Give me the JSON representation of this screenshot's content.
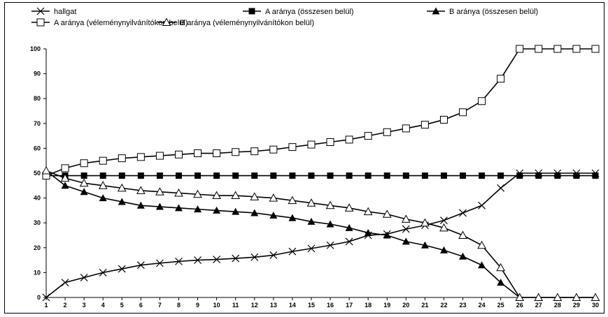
{
  "chart_data": {
    "type": "line",
    "title": "",
    "xlabel": "",
    "ylabel": "",
    "x": [
      1,
      2,
      3,
      4,
      5,
      6,
      7,
      8,
      9,
      10,
      11,
      12,
      13,
      14,
      15,
      16,
      17,
      18,
      19,
      20,
      21,
      22,
      23,
      24,
      25,
      26,
      27,
      28,
      29,
      30
    ],
    "xlim": [
      1,
      30
    ],
    "ylim": [
      0,
      100
    ],
    "yticks": [
      0,
      10,
      20,
      30,
      40,
      50,
      60,
      70,
      80,
      90,
      100
    ],
    "grid": false,
    "legend_position": "top",
    "series": [
      {
        "name": "hallgat",
        "marker": "x",
        "values": [
          0,
          6,
          8,
          10,
          11.5,
          13,
          13.8,
          14.5,
          15,
          15.3,
          15.7,
          16.2,
          17,
          18.5,
          19.7,
          21,
          22.5,
          25,
          25.5,
          27.5,
          29,
          31,
          34,
          37,
          44,
          50,
          50,
          50,
          50,
          50
        ]
      },
      {
        "name": "A aránya (összesen belül)",
        "marker": "filled-square",
        "values": [
          49,
          49,
          49,
          49,
          49,
          49,
          49,
          49,
          49,
          49,
          49,
          49,
          49,
          49,
          49,
          49,
          49,
          49,
          49,
          49,
          49,
          49,
          49,
          49,
          49,
          49,
          49,
          49,
          49,
          49
        ]
      },
      {
        "name": "B aránya (összesen belül)",
        "marker": "filled-triangle",
        "values": [
          51,
          45,
          42.5,
          40,
          38.5,
          37,
          36.5,
          36,
          35.5,
          35,
          34.5,
          34,
          33,
          32,
          30.5,
          29.5,
          28,
          26,
          25,
          22.5,
          21,
          19,
          16.5,
          13,
          6,
          0,
          0,
          0,
          0,
          0
        ]
      },
      {
        "name": "A aránya (véleménynyilvánítókon belül)",
        "marker": "open-square",
        "values": [
          49,
          52,
          54,
          55,
          56,
          56.5,
          57,
          57.5,
          58,
          58,
          58.5,
          58.8,
          59.5,
          60.5,
          61.5,
          62.5,
          63.5,
          65,
          66.5,
          68,
          69.5,
          71.5,
          74.5,
          79,
          88,
          100,
          100,
          100,
          100,
          100
        ]
      },
      {
        "name": "B aránya (véleménynyilvánítókon belül)",
        "marker": "open-triangle",
        "values": [
          51,
          48,
          46,
          45,
          44,
          43,
          42.5,
          42,
          41.5,
          41,
          41,
          40.5,
          40,
          39,
          38,
          37,
          36,
          34.5,
          33.5,
          31.5,
          30,
          28,
          25,
          21,
          12,
          0,
          0,
          0,
          0,
          0
        ]
      }
    ]
  }
}
